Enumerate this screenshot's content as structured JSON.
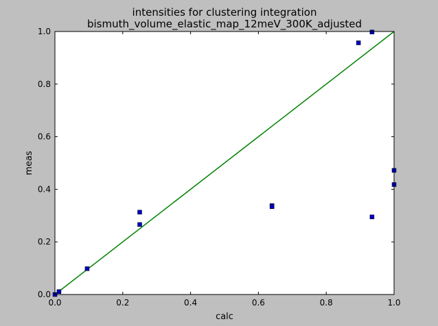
{
  "chart_data": {
    "type": "scatter",
    "title": "intensities for clustering integration",
    "subtitle": "bismuth_volume_elastic_map_12meV_300K_adjusted",
    "xlabel": "calc",
    "ylabel": "meas",
    "xlim": [
      0,
      1
    ],
    "ylim": [
      0,
      1
    ],
    "x_ticks": [
      "0.0",
      "0.2",
      "0.4",
      "0.6",
      "0.8",
      "1.0"
    ],
    "y_ticks": [
      "0.0",
      "0.2",
      "0.4",
      "0.6",
      "0.8",
      "1.0"
    ],
    "grid": false,
    "points": [
      {
        "x": 0.0,
        "y": 0.0
      },
      {
        "x": 0.012,
        "y": 0.011
      },
      {
        "x": 0.095,
        "y": 0.098
      },
      {
        "x": 0.25,
        "y": 0.313
      },
      {
        "x": 0.25,
        "y": 0.266
      },
      {
        "x": 0.64,
        "y": 0.338
      },
      {
        "x": 0.64,
        "y": 0.334
      },
      {
        "x": 0.895,
        "y": 0.957
      },
      {
        "x": 0.935,
        "y": 0.998
      },
      {
        "x": 0.935,
        "y": 0.295
      },
      {
        "x": 1.0,
        "y": 0.472
      },
      {
        "x": 1.0,
        "y": 0.418
      }
    ],
    "reference_line": {
      "x": [
        0,
        1
      ],
      "y": [
        0,
        1
      ]
    },
    "marker_color": "#0000bf",
    "line_color": "#008000"
  }
}
